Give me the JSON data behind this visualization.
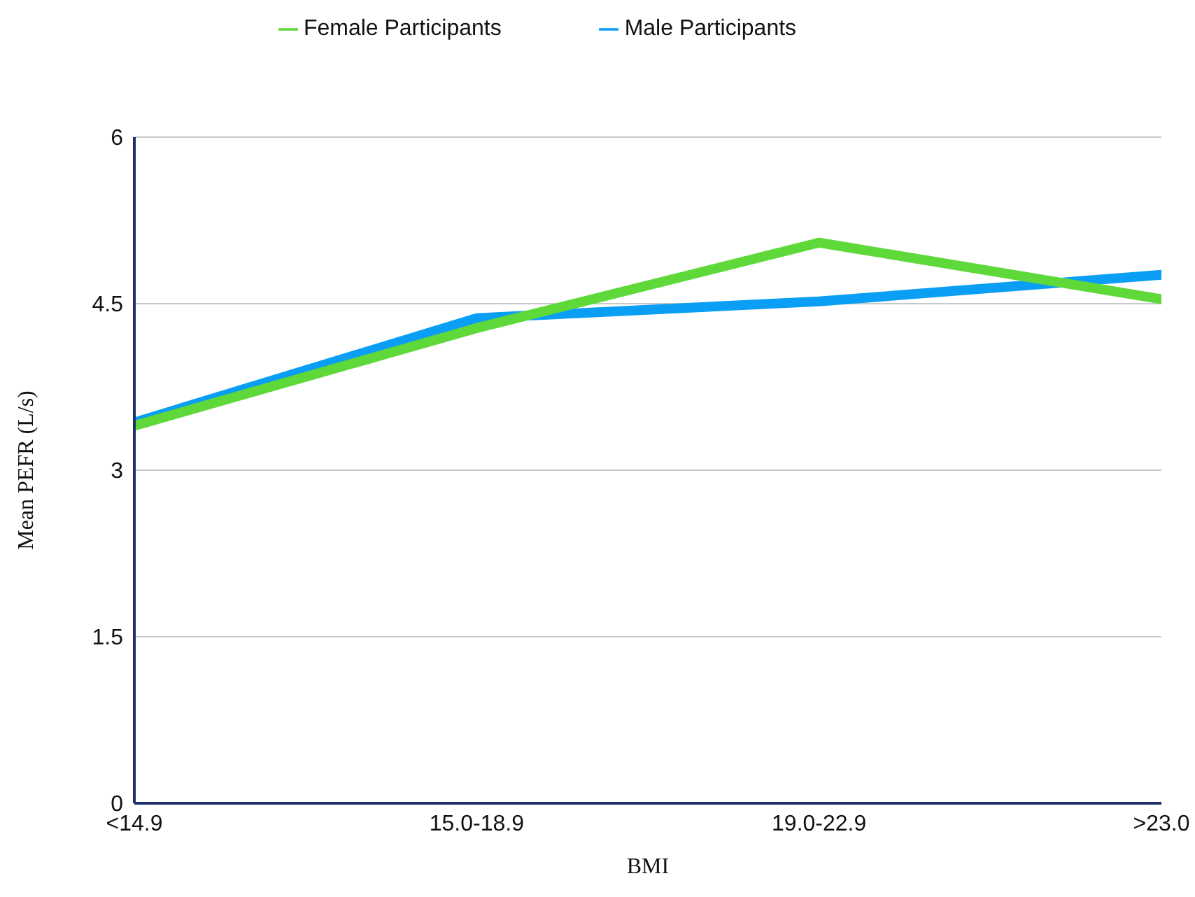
{
  "chart_data": {
    "type": "line",
    "xlabel": "BMI",
    "ylabel": "Mean PEFR (L/s)",
    "categories": [
      "<14.9",
      "15.0-18.9",
      "19.0-22.9",
      ">23.0"
    ],
    "series": [
      {
        "name": "Male Participants",
        "color": "#0a9ff5",
        "values": [
          3.43,
          4.37,
          4.52,
          4.76
        ]
      },
      {
        "name": "Female Participants",
        "color": "#5fd83a",
        "values": [
          3.4,
          4.28,
          5.05,
          4.54
        ]
      }
    ],
    "ylim": [
      0,
      6
    ],
    "yticks": [
      0,
      1.5,
      3,
      4.5,
      6
    ],
    "grid": "y",
    "legend": "top",
    "marker": "none",
    "line_style": "solid"
  }
}
